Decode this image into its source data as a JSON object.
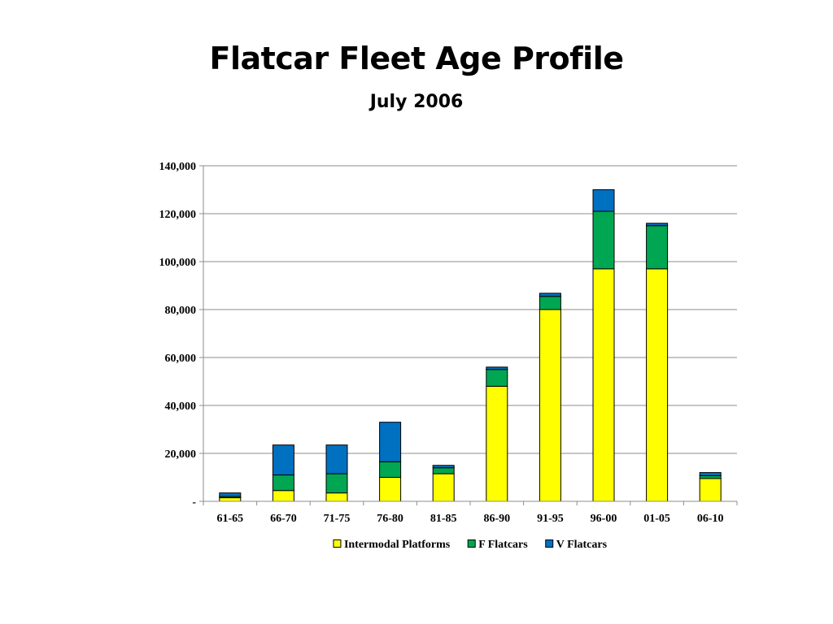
{
  "slide": {
    "title": "Flatcar Fleet Age Profile",
    "subtitle": "July 2006"
  },
  "chart_data": {
    "type": "bar",
    "stacked": true,
    "categories": [
      "61-65",
      "66-70",
      "71-75",
      "76-80",
      "81-85",
      "86-90",
      "91-95",
      "96-00",
      "01-05",
      "06-10"
    ],
    "series": [
      {
        "name": "Intermodal Platforms",
        "color": "#FFFF00",
        "values": [
          1500,
          4500,
          3500,
          10000,
          11500,
          48000,
          80000,
          97000,
          97000,
          9500
        ]
      },
      {
        "name": "F Flatcars",
        "color": "#00A651",
        "values": [
          500,
          6500,
          8000,
          6500,
          2500,
          7000,
          5500,
          24000,
          18000,
          1200
        ]
      },
      {
        "name": "V Flatcars",
        "color": "#0070C0",
        "values": [
          1500,
          12500,
          12000,
          16500,
          1000,
          1000,
          1300,
          9000,
          1000,
          1300
        ]
      }
    ],
    "ylim": [
      0,
      140000
    ],
    "y_ticks": [
      0,
      20000,
      40000,
      60000,
      80000,
      100000,
      120000,
      140000
    ],
    "y_tick_labels": [
      "-",
      "20,000",
      "40,000",
      "60,000",
      "80,000",
      "100,000",
      "120,000",
      "140,000"
    ],
    "grid": true,
    "legend_position": "bottom"
  }
}
